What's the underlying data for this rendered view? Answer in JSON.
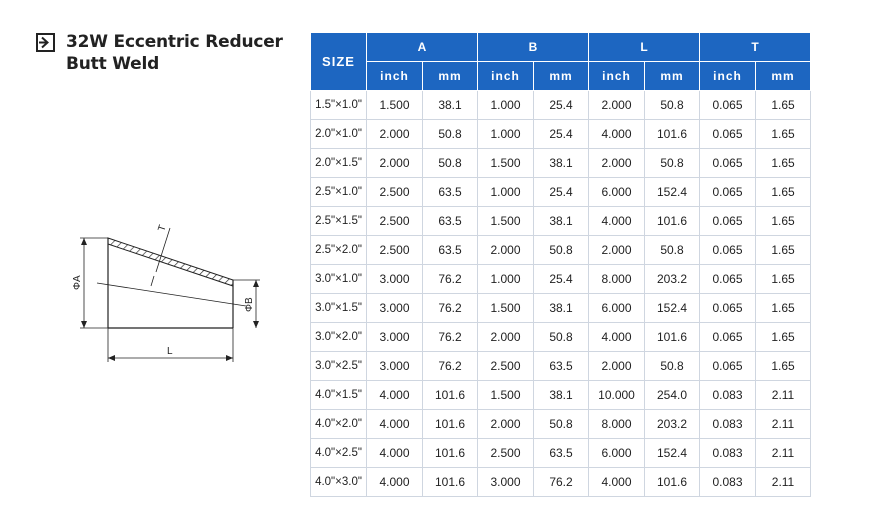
{
  "title": {
    "line1": "32W Eccentric Reducer",
    "line2": "Butt Weld"
  },
  "diagram": {
    "label_t": "T",
    "label_a": "ΦA",
    "label_b": "ΦB",
    "label_l": "L"
  },
  "table": {
    "size_header": "SIZE",
    "groups": [
      "A",
      "B",
      "L",
      "T"
    ],
    "units": [
      "inch",
      "mm",
      "inch",
      "mm",
      "inch",
      "mm",
      "inch",
      "mm"
    ],
    "rows": [
      [
        "1.5\"×1.0\"",
        "1.500",
        "38.1",
        "1.000",
        "25.4",
        "2.000",
        "50.8",
        "0.065",
        "1.65"
      ],
      [
        "2.0\"×1.0\"",
        "2.000",
        "50.8",
        "1.000",
        "25.4",
        "4.000",
        "101.6",
        "0.065",
        "1.65"
      ],
      [
        "2.0\"×1.5\"",
        "2.000",
        "50.8",
        "1.500",
        "38.1",
        "2.000",
        "50.8",
        "0.065",
        "1.65"
      ],
      [
        "2.5\"×1.0\"",
        "2.500",
        "63.5",
        "1.000",
        "25.4",
        "6.000",
        "152.4",
        "0.065",
        "1.65"
      ],
      [
        "2.5\"×1.5\"",
        "2.500",
        "63.5",
        "1.500",
        "38.1",
        "4.000",
        "101.6",
        "0.065",
        "1.65"
      ],
      [
        "2.5\"×2.0\"",
        "2.500",
        "63.5",
        "2.000",
        "50.8",
        "2.000",
        "50.8",
        "0.065",
        "1.65"
      ],
      [
        "3.0\"×1.0\"",
        "3.000",
        "76.2",
        "1.000",
        "25.4",
        "8.000",
        "203.2",
        "0.065",
        "1.65"
      ],
      [
        "3.0\"×1.5\"",
        "3.000",
        "76.2",
        "1.500",
        "38.1",
        "6.000",
        "152.4",
        "0.065",
        "1.65"
      ],
      [
        "3.0\"×2.0\"",
        "3.000",
        "76.2",
        "2.000",
        "50.8",
        "4.000",
        "101.6",
        "0.065",
        "1.65"
      ],
      [
        "3.0\"×2.5\"",
        "3.000",
        "76.2",
        "2.500",
        "63.5",
        "2.000",
        "50.8",
        "0.065",
        "1.65"
      ],
      [
        "4.0\"×1.5\"",
        "4.000",
        "101.6",
        "1.500",
        "38.1",
        "10.000",
        "254.0",
        "0.083",
        "2.11"
      ],
      [
        "4.0\"×2.0\"",
        "4.000",
        "101.6",
        "2.000",
        "50.8",
        "8.000",
        "203.2",
        "0.083",
        "2.11"
      ],
      [
        "4.0\"×2.5\"",
        "4.000",
        "101.6",
        "2.500",
        "63.5",
        "6.000",
        "152.4",
        "0.083",
        "2.11"
      ],
      [
        "4.0\"×3.0\"",
        "4.000",
        "101.6",
        "3.000",
        "76.2",
        "4.000",
        "101.6",
        "0.083",
        "2.11"
      ]
    ]
  },
  "colors": {
    "header_bg": "#1d66c1",
    "header_text": "#ffffff",
    "border": "#cfd6e0"
  },
  "icons": {
    "title_icon": "arrow-right-box-icon"
  }
}
